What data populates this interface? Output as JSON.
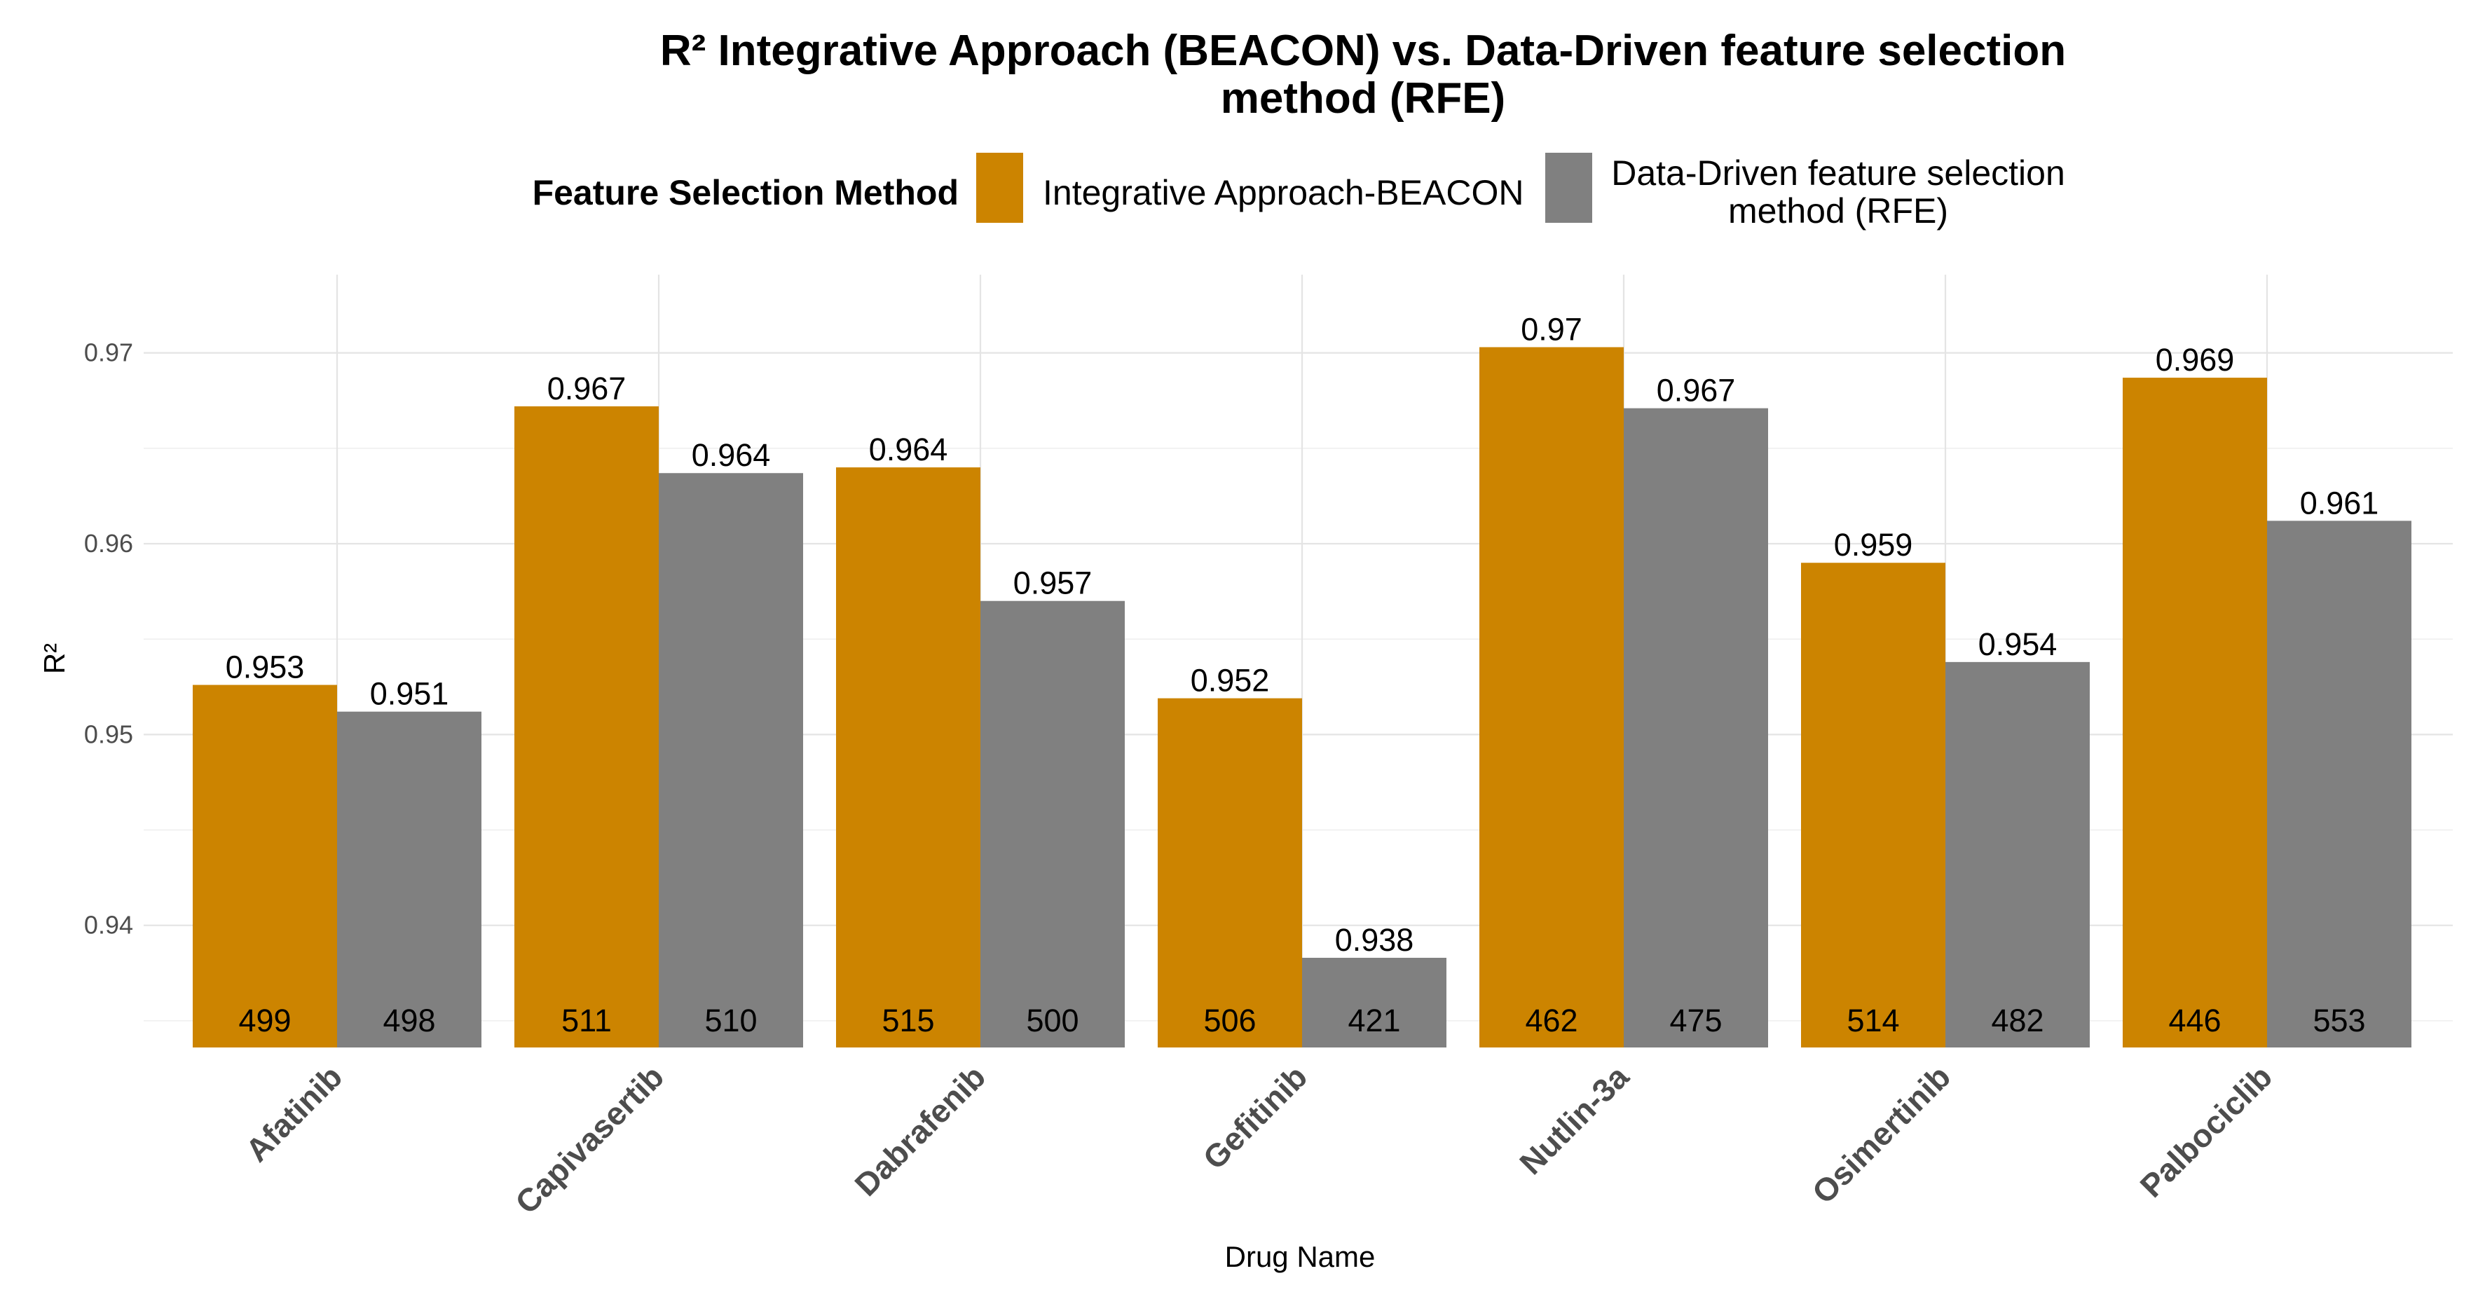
{
  "chart_data": {
    "type": "bar",
    "title": "R² Integrative Approach (BEACON) vs. Data-Driven feature selection method (RFE)",
    "title_lines": [
      "R² Integrative Approach (BEACON) vs. Data-Driven feature selection",
      "method (RFE)"
    ],
    "xlabel": "Drug Name",
    "ylabel": "R²",
    "ylim": [
      0.9336,
      0.9741
    ],
    "yticks": [
      0.94,
      0.95,
      0.96,
      0.97
    ],
    "ytick_labels": [
      "0.94",
      "0.95",
      "0.96",
      "0.97"
    ],
    "grid": true,
    "legend": {
      "title": "Feature Selection Method",
      "position": "top"
    },
    "categories": [
      "Afatinib",
      "Capivasertib",
      "Dabrafenib",
      "Gefitinib",
      "Nutlin-3a",
      "Osimertinib",
      "Palbociclib"
    ],
    "series": [
      {
        "name": "Integrative Approach-BEACON",
        "legend_lines": [
          "Integrative Approach-BEACON"
        ],
        "color": "#CC8400",
        "values": [
          0.9526,
          0.9672,
          0.964,
          0.9519,
          0.9703,
          0.959,
          0.9687
        ],
        "value_labels": [
          "0.953",
          "0.967",
          "0.964",
          "0.952",
          "0.97",
          "0.959",
          "0.969"
        ],
        "counts": [
          "499",
          "511",
          "515",
          "506",
          "462",
          "514",
          "446"
        ]
      },
      {
        "name": "Data-Driven feature selection method (RFE)",
        "legend_lines": [
          "Data-Driven feature selection",
          "method (RFE)"
        ],
        "color": "#808080",
        "values": [
          0.9512,
          0.9637,
          0.957,
          0.9383,
          0.9671,
          0.9538,
          0.9612
        ],
        "value_labels": [
          "0.951",
          "0.964",
          "0.957",
          "0.938",
          "0.967",
          "0.954",
          "0.961"
        ],
        "counts": [
          "498",
          "510",
          "500",
          "421",
          "475",
          "482",
          "553"
        ]
      }
    ]
  }
}
